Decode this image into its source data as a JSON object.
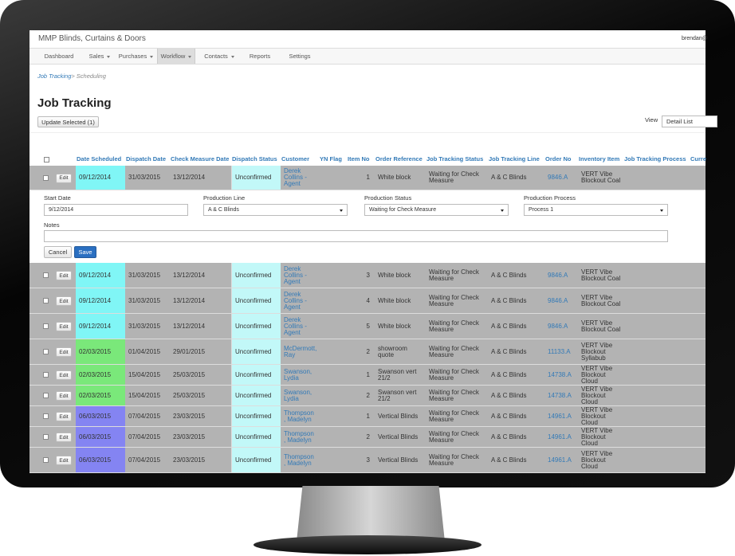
{
  "app": {
    "title": "MMP Blinds, Curtains & Doors",
    "user": "brendan@"
  },
  "nav": {
    "items": [
      "Dashboard",
      "Sales",
      "Purchases",
      "Workflow",
      "Contacts",
      "Reports",
      "Settings"
    ],
    "active": 3,
    "dropdown": [
      1,
      2,
      3,
      4
    ]
  },
  "breadcrumb": {
    "link": "Job Tracking",
    "separator": ">",
    "current": "Scheduling"
  },
  "page": {
    "title": "Job Tracking",
    "update_button": "Update Selected (1)",
    "view_label": "View",
    "view_value": "Detail List"
  },
  "table": {
    "headers": [
      "Date Scheduled",
      "Dispatch Date",
      "Check Measure Date",
      "Dispatch Status",
      "Customer",
      "YN Flag",
      "Item No",
      "Order Reference",
      "Job Tracking Status",
      "Job Tracking Line",
      "Order No",
      "Inventory Item",
      "Job Tracking Process",
      "Curre"
    ],
    "edit_label": "Edit",
    "rows": [
      {
        "date_scheduled": "09/12/2014",
        "dispatch_date": "31/03/2015",
        "check_measure_date": "13/12/2014",
        "dispatch_status": "Unconfirmed",
        "customer": "Derek Collins - Agent",
        "item_no": 1,
        "order_reference": "White block",
        "job_tracking_status": "Waiting for Check Measure",
        "job_tracking_line": "A & C Blinds",
        "order_no": "9846.A",
        "inventory_item": "VERT Vibe Blockout Coal",
        "date_color": "#80f6f6"
      },
      {
        "date_scheduled": "09/12/2014",
        "dispatch_date": "31/03/2015",
        "check_measure_date": "13/12/2014",
        "dispatch_status": "Unconfirmed",
        "customer": "Derek Collins - Agent",
        "item_no": 3,
        "order_reference": "White block",
        "job_tracking_status": "Waiting for Check Measure",
        "job_tracking_line": "A & C Blinds",
        "order_no": "9846.A",
        "inventory_item": "VERT Vibe Blockout Coal",
        "date_color": "#80f6f6"
      },
      {
        "date_scheduled": "09/12/2014",
        "dispatch_date": "31/03/2015",
        "check_measure_date": "13/12/2014",
        "dispatch_status": "Unconfirmed",
        "customer": "Derek Collins - Agent",
        "item_no": 4,
        "order_reference": "White block",
        "job_tracking_status": "Waiting for Check Measure",
        "job_tracking_line": "A & C Blinds",
        "order_no": "9846.A",
        "inventory_item": "VERT Vibe Blockout Coal",
        "date_color": "#80f6f6"
      },
      {
        "date_scheduled": "09/12/2014",
        "dispatch_date": "31/03/2015",
        "check_measure_date": "13/12/2014",
        "dispatch_status": "Unconfirmed",
        "customer": "Derek Collins - Agent",
        "item_no": 5,
        "order_reference": "White block",
        "job_tracking_status": "Waiting for Check Measure",
        "job_tracking_line": "A & C Blinds",
        "order_no": "9846.A",
        "inventory_item": "VERT Vibe Blockout Coal",
        "date_color": "#80f6f6"
      },
      {
        "date_scheduled": "02/03/2015",
        "dispatch_date": "01/04/2015",
        "check_measure_date": "29/01/2015",
        "dispatch_status": "Unconfirmed",
        "customer": "McDermott, Ray",
        "item_no": 2,
        "order_reference": "showroom quote",
        "job_tracking_status": "Waiting for Check Measure",
        "job_tracking_line": "A & C Blinds",
        "order_no": "11133.A",
        "inventory_item": "VERT Vibe Blockout Syllabub",
        "date_color": "#7ae87a"
      },
      {
        "date_scheduled": "02/03/2015",
        "dispatch_date": "15/04/2015",
        "check_measure_date": "25/03/2015",
        "dispatch_status": "Unconfirmed",
        "customer": "Swanson, Lydia",
        "item_no": 1,
        "order_reference": "Swanson vert 21/2",
        "job_tracking_status": "Waiting for Check Measure",
        "job_tracking_line": "A & C Blinds",
        "order_no": "14738.A",
        "inventory_item": "VERT Vibe Blockout Cloud",
        "date_color": "#7ae87a"
      },
      {
        "date_scheduled": "02/03/2015",
        "dispatch_date": "15/04/2015",
        "check_measure_date": "25/03/2015",
        "dispatch_status": "Unconfirmed",
        "customer": "Swanson, Lydia",
        "item_no": 2,
        "order_reference": "Swanson vert 21/2",
        "job_tracking_status": "Waiting for Check Measure",
        "job_tracking_line": "A & C Blinds",
        "order_no": "14738.A",
        "inventory_item": "VERT Vibe Blockout Cloud",
        "date_color": "#7ae87a"
      },
      {
        "date_scheduled": "06/03/2015",
        "dispatch_date": "07/04/2015",
        "check_measure_date": "23/03/2015",
        "dispatch_status": "Unconfirmed",
        "customer": "Thompson , Madelyn",
        "item_no": 1,
        "order_reference": "Vertical Blinds",
        "job_tracking_status": "Waiting for Check Measure",
        "job_tracking_line": "A & C Blinds",
        "order_no": "14961.A",
        "inventory_item": "VERT Vibe Blockout Cloud",
        "date_color": "#8484f2"
      },
      {
        "date_scheduled": "06/03/2015",
        "dispatch_date": "07/04/2015",
        "check_measure_date": "23/03/2015",
        "dispatch_status": "Unconfirmed",
        "customer": "Thompson , Madelyn",
        "item_no": 2,
        "order_reference": "Vertical Blinds",
        "job_tracking_status": "Waiting for Check Measure",
        "job_tracking_line": "A & C Blinds",
        "order_no": "14961.A",
        "inventory_item": "VERT Vibe Blockout Cloud",
        "date_color": "#8484f2"
      },
      {
        "date_scheduled": "06/03/2015",
        "dispatch_date": "07/04/2015",
        "check_measure_date": "23/03/2015",
        "dispatch_status": "Unconfirmed",
        "customer": "Thompson , Madelyn",
        "item_no": 3,
        "order_reference": "Vertical Blinds",
        "job_tracking_status": "Waiting for Check Measure",
        "job_tracking_line": "A & C Blinds",
        "order_no": "14961.A",
        "inventory_item": "VERT Vibe Blockout Cloud",
        "date_color": "#8484f2"
      }
    ]
  },
  "edit_form": {
    "after_row": 0,
    "fields": [
      {
        "label": "Start Date",
        "value": "9/12/2014"
      },
      {
        "label": "Production Line",
        "value": "A & C Blinds"
      },
      {
        "label": "Production Status",
        "value": "Waiting for Check Measure"
      },
      {
        "label": "Production Process",
        "value": "Process 1"
      }
    ],
    "notes_label": "Notes",
    "cancel": "Cancel",
    "save": "Save"
  }
}
